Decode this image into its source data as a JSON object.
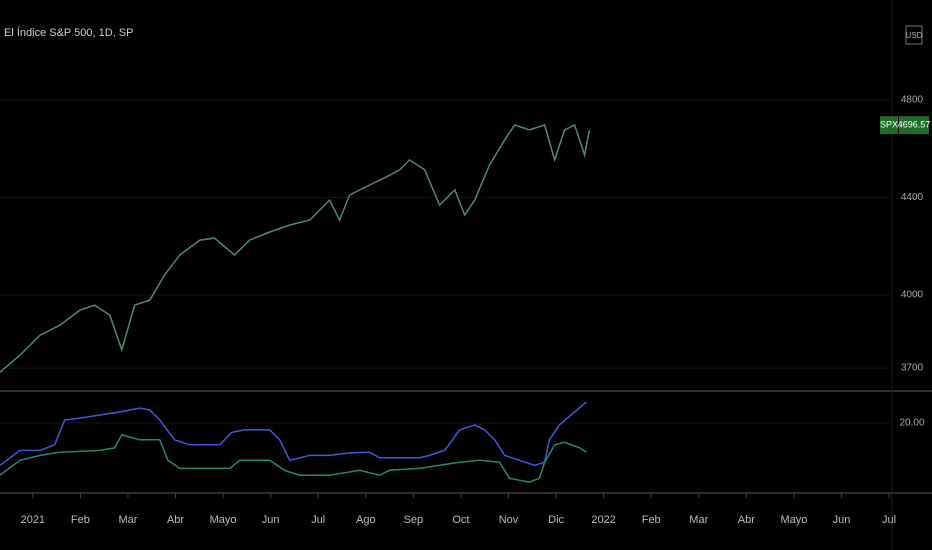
{
  "chart_data": [
    {
      "type": "line",
      "title": "El Índice S&P 500, 1D, SP",
      "currency": "USD",
      "symbol": "SPX",
      "last_value": 4696.57,
      "last_color": "#1e6b2a",
      "xlim": [
        -0.69,
        18.02
      ],
      "ylim": [
        3610,
        5210
      ],
      "yticks": [
        3700,
        4000,
        4400,
        4800
      ],
      "series": [
        {
          "color": "#4f8c6a",
          "x": [
            -0.69,
            -0.27,
            0.15,
            0.57,
            0.99,
            1.3,
            1.62,
            1.87,
            2.14,
            2.46,
            2.77,
            3.09,
            3.51,
            3.82,
            4.24,
            4.56,
            4.98,
            5.4,
            5.82,
            6.24,
            6.45,
            6.66,
            7.08,
            7.39,
            7.71,
            7.92,
            8.24,
            8.55,
            8.87,
            9.08,
            9.29,
            9.6,
            9.92,
            10.13,
            10.44,
            10.76,
            10.97,
            11.18,
            11.39,
            11.6,
            11.7
          ],
          "values": [
            3683,
            3753,
            3835,
            3876,
            3938,
            3958,
            3917,
            3774,
            3958,
            3979,
            4082,
            4164,
            4225,
            4233,
            4164,
            4225,
            4258,
            4287,
            4307,
            4389,
            4307,
            4410,
            4451,
            4480,
            4513,
            4554,
            4513,
            4369,
            4431,
            4328,
            4389,
            4533,
            4636,
            4697,
            4677,
            4697,
            4554,
            4677,
            4697,
            4574,
            4677
          ]
        }
      ]
    },
    {
      "type": "line",
      "xlim": [
        -0.69,
        18.02
      ],
      "ylim": [
        8.9,
        25
      ],
      "yticks": [
        {
          "value": 20,
          "label": "20.00"
        }
      ],
      "xticks": [
        {
          "value": 0,
          "label": "2021"
        },
        {
          "value": 1,
          "label": "Feb"
        },
        {
          "value": 2,
          "label": "Mar"
        },
        {
          "value": 3,
          "label": "Abr"
        },
        {
          "value": 4,
          "label": "Mayo"
        },
        {
          "value": 5,
          "label": "Jun"
        },
        {
          "value": 6,
          "label": "Jul"
        },
        {
          "value": 7,
          "label": "Ago"
        },
        {
          "value": 8,
          "label": "Sep"
        },
        {
          "value": 9,
          "label": "Oct"
        },
        {
          "value": 10,
          "label": "Nov"
        },
        {
          "value": 11,
          "label": "Dic"
        },
        {
          "value": 12,
          "label": "2022"
        },
        {
          "value": 13,
          "label": "Feb"
        },
        {
          "value": 14,
          "label": "Mar"
        },
        {
          "value": 15,
          "label": "Abr"
        },
        {
          "value": 16,
          "label": "Mayo"
        },
        {
          "value": 17,
          "label": "Jun"
        },
        {
          "value": 18,
          "label": "Jul"
        }
      ],
      "series": [
        {
          "color": "#3d5bd9",
          "x": [
            -0.69,
            -0.27,
            0.15,
            0.46,
            0.67,
            0.99,
            1.41,
            1.83,
            2.25,
            2.46,
            2.67,
            2.98,
            3.3,
            3.61,
            3.93,
            4.18,
            4.45,
            4.98,
            5.19,
            5.4,
            5.82,
            6.24,
            6.66,
            7.08,
            7.29,
            7.71,
            8.13,
            8.34,
            8.66,
            8.97,
            9.29,
            9.5,
            9.71,
            9.92,
            10.23,
            10.55,
            10.76,
            10.86,
            11.07,
            11.39,
            11.64
          ],
          "values": [
            13.2,
            15.6,
            15.6,
            16.5,
            20.5,
            20.8,
            21.3,
            21.8,
            22.4,
            22.1,
            20.5,
            17.3,
            16.5,
            16.5,
            16.5,
            18.5,
            18.9,
            18.9,
            17.3,
            14.0,
            14.8,
            14.8,
            15.2,
            15.3,
            14.4,
            14.4,
            14.4,
            14.8,
            15.6,
            18.9,
            19.7,
            18.9,
            17.3,
            14.8,
            14.0,
            13.2,
            13.7,
            17.3,
            19.7,
            21.8,
            23.4
          ]
        },
        {
          "color": "#1f8a7a",
          "x": [
            -0.69,
            -0.27,
            0.15,
            0.57,
            1.41,
            1.72,
            1.87,
            2.25,
            2.67,
            2.84,
            3.09,
            4.14,
            4.35,
            4.98,
            5.29,
            5.61,
            6.24,
            6.87,
            7.29,
            7.5,
            8.13,
            8.55,
            8.97,
            9.39,
            9.81,
            10.02,
            10.44,
            10.65,
            10.76,
            10.97,
            11.18,
            11.5,
            11.64
          ],
          "values": [
            11.6,
            14.0,
            14.8,
            15.3,
            15.6,
            16.0,
            18.1,
            17.3,
            17.3,
            14.0,
            12.7,
            12.7,
            14.0,
            14.0,
            12.4,
            11.6,
            11.6,
            12.4,
            11.6,
            12.4,
            12.7,
            13.2,
            13.7,
            14.0,
            13.7,
            11.1,
            10.5,
            11.1,
            13.7,
            16.5,
            16.9,
            16.0,
            15.3
          ]
        }
      ]
    }
  ]
}
